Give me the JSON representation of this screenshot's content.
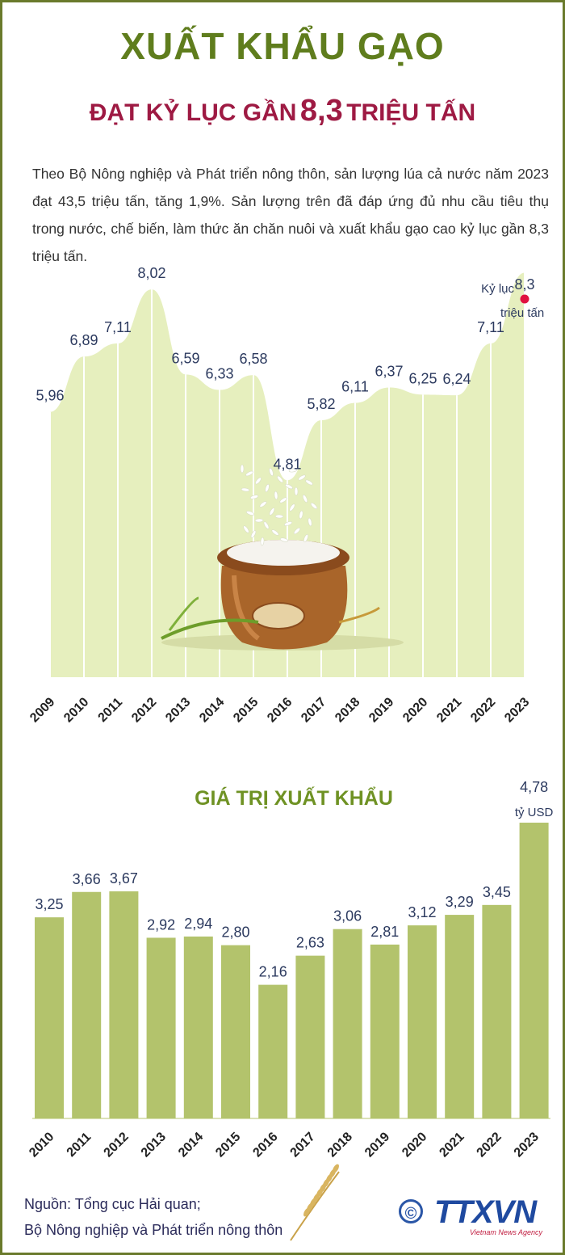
{
  "header": {
    "title": "XUẤT KHẨU GẠO",
    "subtitle_pre": "ĐẠT KỶ LỤC GẦN",
    "subtitle_highlight": "8,3",
    "subtitle_post": "TRIỆU TẤN"
  },
  "intro": "Theo Bộ Nông nghiệp và Phát triển nông thôn, sản lượng lúa cả nước năm 2023 đạt 43,5 triệu tấn, tăng 1,9%. Sản lượng trên đã đáp ứng đủ nhu cầu tiêu thụ trong nước, chế biến, làm thức ăn chăn nuôi và xuất khẩu gạo cao kỷ lục gần 8,3 triệu tấn.",
  "colors": {
    "title": "#5f7d1d",
    "subtitle": "#9e1a43",
    "area_fill": "#e6efbe",
    "bar_fill": "#b3c36c",
    "record_dot": "#e0123f",
    "value_text": "#2c3a5f"
  },
  "chart_data": [
    {
      "type": "area",
      "title": "",
      "categories": [
        "2009",
        "2010",
        "2011",
        "2012",
        "2013",
        "2014",
        "2015",
        "2016",
        "2017",
        "2018",
        "2019",
        "2020",
        "2021",
        "2022",
        "2023"
      ],
      "series": [
        {
          "values": [
            5.96,
            6.89,
            7.11,
            8.02,
            6.59,
            6.33,
            6.58,
            4.81,
            5.82,
            6.11,
            6.37,
            6.25,
            6.24,
            7.11,
            8.3
          ],
          "labels": [
            "5,96",
            "6,89",
            "7,11",
            "8,02",
            "6,59",
            "6,33",
            "6,58",
            "4,81",
            "5,82",
            "6,11",
            "6,37",
            "6,25",
            "6,24",
            "7,11",
            "8,3"
          ]
        }
      ],
      "annotations": {
        "record_label": "Kỷ lục",
        "unit_label": "triệu tấn"
      },
      "ylim": [
        0,
        9
      ],
      "grid": false
    },
    {
      "type": "bar",
      "title": "GIÁ TRỊ XUẤT KHẨU",
      "categories": [
        "2010",
        "2011",
        "2012",
        "2013",
        "2014",
        "2015",
        "2016",
        "2017",
        "2018",
        "2019",
        "2020",
        "2021",
        "2022",
        "2023"
      ],
      "series": [
        {
          "values": [
            3.25,
            3.66,
            3.67,
            2.92,
            2.94,
            2.8,
            2.16,
            2.63,
            3.06,
            2.81,
            3.12,
            3.29,
            3.45,
            4.78
          ],
          "labels": [
            "3,25",
            "3,66",
            "3,67",
            "2,92",
            "2,94",
            "2,80",
            "2,16",
            "2,63",
            "3,06",
            "2,81",
            "3,12",
            "3,29",
            "3,45",
            "4,78"
          ]
        }
      ],
      "annotations": {
        "unit_label": "tỷ USD"
      },
      "ylim": [
        0,
        4.78
      ],
      "grid": false
    }
  ],
  "source": {
    "line1": "Nguồn: Tổng cục Hải quan;",
    "line2": "Bộ Nông nghiệp và Phát triển nông thôn"
  },
  "logo": {
    "symbol": "©",
    "name": "TTXVN",
    "subtitle": "Vietnam News Agency"
  }
}
